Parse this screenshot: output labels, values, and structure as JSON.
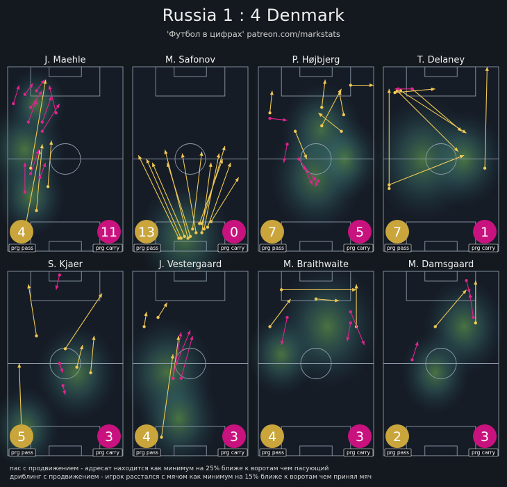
{
  "header": {
    "title": "Russia 1 : 4 Denmark",
    "subtitle": "'Футбол в цифрах' patreon.com/markstats"
  },
  "legend": {
    "prg_pass": "пас с продвижением - адресат находится как минимум на 25% ближе к воротам чем пасующий",
    "prg_carry": "дриблинг с продвижением - игрок расстался с мячом как минимум на 15% ближе к воротам чем принял мяч"
  },
  "colors": {
    "pass": "#f0c955",
    "carry": "#e0248f",
    "pass_badge": "#c9a53c",
    "carry_badge": "#c8127e",
    "pitch_line": "#8a98a8",
    "background": "#14191f"
  },
  "badge_labels": {
    "pass": "prg pass",
    "carry": "prg carry"
  },
  "chart_data": [
    {
      "type": "scatter",
      "player": "J. Maehle",
      "prg_pass": 4,
      "prg_carry": 11,
      "heat": [
        [
          0.15,
          0.45,
          0.35
        ],
        [
          0.2,
          0.7,
          0.3
        ],
        [
          0.25,
          0.2,
          0.25
        ]
      ],
      "passes": [
        [
          0.2,
          0.55,
          0.33,
          0.07
        ],
        [
          0.25,
          0.78,
          0.3,
          0.42
        ],
        [
          0.15,
          0.88,
          0.28,
          0.45
        ],
        [
          0.35,
          0.65,
          0.38,
          0.4
        ]
      ],
      "carries": [
        [
          0.05,
          0.2,
          0.1,
          0.1
        ],
        [
          0.15,
          0.15,
          0.22,
          0.09
        ],
        [
          0.25,
          0.13,
          0.32,
          0.07
        ],
        [
          0.2,
          0.22,
          0.3,
          0.13
        ],
        [
          0.3,
          0.3,
          0.38,
          0.16
        ],
        [
          0.18,
          0.3,
          0.25,
          0.18
        ],
        [
          0.3,
          0.35,
          0.45,
          0.2
        ],
        [
          0.42,
          0.25,
          0.36,
          0.1
        ],
        [
          0.2,
          0.58,
          0.27,
          0.45
        ],
        [
          0.15,
          0.68,
          0.15,
          0.52
        ],
        [
          0.28,
          0.6,
          0.33,
          0.52
        ]
      ]
    },
    {
      "type": "scatter",
      "player": "M. Safonov",
      "prg_pass": 13,
      "prg_carry": 0,
      "heat": [
        [
          0.45,
          0.92,
          0.4
        ]
      ],
      "passes": [
        [
          0.4,
          0.93,
          0.05,
          0.48
        ],
        [
          0.42,
          0.93,
          0.12,
          0.5
        ],
        [
          0.45,
          0.92,
          0.17,
          0.52
        ],
        [
          0.48,
          0.93,
          0.28,
          0.45
        ],
        [
          0.5,
          0.92,
          0.3,
          0.52
        ],
        [
          0.55,
          0.9,
          0.43,
          0.47
        ],
        [
          0.6,
          0.9,
          0.68,
          0.52
        ],
        [
          0.62,
          0.88,
          0.75,
          0.47
        ],
        [
          0.6,
          0.85,
          0.8,
          0.43
        ],
        [
          0.65,
          0.87,
          0.85,
          0.52
        ],
        [
          0.58,
          0.85,
          0.78,
          0.5
        ],
        [
          0.68,
          0.84,
          0.92,
          0.6
        ],
        [
          0.52,
          0.88,
          0.6,
          0.46
        ]
      ],
      "carries": []
    },
    {
      "type": "scatter",
      "player": "P. Højbjerg",
      "prg_pass": 7,
      "prg_carry": 5,
      "heat": [
        [
          0.55,
          0.35,
          0.35
        ],
        [
          0.5,
          0.6,
          0.4
        ],
        [
          0.75,
          0.5,
          0.3
        ]
      ],
      "passes": [
        [
          0.1,
          0.25,
          0.12,
          0.13
        ],
        [
          0.55,
          0.22,
          0.58,
          0.07
        ],
        [
          0.55,
          0.32,
          0.72,
          0.12
        ],
        [
          0.74,
          0.26,
          0.7,
          0.13
        ],
        [
          0.8,
          0.1,
          1.0,
          0.1
        ],
        [
          0.32,
          0.35,
          0.42,
          0.5
        ],
        [
          0.72,
          0.35,
          0.52,
          0.25
        ]
      ],
      "carries": [
        [
          0.1,
          0.28,
          0.25,
          0.29
        ],
        [
          0.25,
          0.42,
          0.22,
          0.52
        ],
        [
          0.35,
          0.5,
          0.5,
          0.62
        ],
        [
          0.4,
          0.55,
          0.47,
          0.64
        ],
        [
          0.52,
          0.62,
          0.49,
          0.65
        ]
      ]
    },
    {
      "type": "scatter",
      "player": "T. Delaney",
      "prg_pass": 7,
      "prg_carry": 1,
      "heat": [
        [
          0.35,
          0.5,
          0.45
        ],
        [
          0.7,
          0.5,
          0.35
        ]
      ],
      "passes": [
        [
          0.05,
          0.66,
          0.05,
          0.12
        ],
        [
          0.1,
          0.14,
          0.45,
          0.12
        ],
        [
          0.12,
          0.13,
          0.65,
          0.46
        ],
        [
          0.15,
          0.13,
          0.72,
          0.36
        ],
        [
          0.25,
          0.12,
          0.68,
          0.35
        ],
        [
          0.05,
          0.64,
          0.7,
          0.48
        ],
        [
          0.88,
          0.55,
          0.9,
          0.0
        ]
      ],
      "carries": [
        [
          0.25,
          0.12,
          0.1,
          0.12
        ]
      ]
    },
    {
      "type": "scatter",
      "player": "S. Kjaer",
      "prg_pass": 5,
      "prg_carry": 3,
      "heat": [
        [
          0.6,
          0.55,
          0.35
        ],
        [
          0.15,
          0.85,
          0.3
        ]
      ],
      "passes": [
        [
          0.25,
          0.35,
          0.18,
          0.07
        ],
        [
          0.5,
          0.42,
          0.82,
          0.12
        ],
        [
          0.12,
          0.85,
          0.1,
          0.5
        ],
        [
          0.72,
          0.55,
          0.75,
          0.35
        ],
        [
          0.6,
          0.52,
          0.65,
          0.4
        ]
      ],
      "carries": [
        [
          0.45,
          0.02,
          0.42,
          0.1
        ],
        [
          0.45,
          0.5,
          0.48,
          0.55
        ],
        [
          0.48,
          0.62,
          0.5,
          0.67
        ]
      ]
    },
    {
      "type": "scatter",
      "player": "J. Vestergaard",
      "prg_pass": 4,
      "prg_carry": 3,
      "heat": [
        [
          0.3,
          0.55,
          0.4
        ],
        [
          0.4,
          0.8,
          0.35
        ]
      ],
      "passes": [
        [
          0.1,
          0.3,
          0.12,
          0.22
        ],
        [
          0.22,
          0.25,
          0.3,
          0.17
        ],
        [
          0.35,
          0.58,
          0.4,
          0.35
        ],
        [
          0.25,
          0.9,
          0.35,
          0.45
        ]
      ],
      "carries": [
        [
          0.35,
          0.58,
          0.42,
          0.33
        ],
        [
          0.38,
          0.5,
          0.5,
          0.32
        ],
        [
          0.42,
          0.58,
          0.52,
          0.35
        ]
      ]
    },
    {
      "type": "scatter",
      "player": "M. Braithwaite",
      "prg_pass": 4,
      "prg_carry": 3,
      "heat": [
        [
          0.6,
          0.3,
          0.45
        ],
        [
          0.2,
          0.45,
          0.3
        ]
      ],
      "passes": [
        [
          0.1,
          0.3,
          0.28,
          0.15
        ],
        [
          0.2,
          0.1,
          0.85,
          0.1
        ],
        [
          0.85,
          0.3,
          0.85,
          0.07
        ],
        [
          0.5,
          0.15,
          0.7,
          0.16
        ]
      ],
      "carries": [
        [
          0.25,
          0.25,
          0.2,
          0.4
        ],
        [
          0.8,
          0.22,
          0.92,
          0.4
        ],
        [
          0.8,
          0.28,
          0.77,
          0.38
        ]
      ]
    },
    {
      "type": "scatter",
      "player": "M. Damsgaard",
      "prg_pass": 2,
      "prg_carry": 3,
      "heat": [
        [
          0.7,
          0.3,
          0.35
        ],
        [
          0.45,
          0.55,
          0.3
        ]
      ],
      "passes": [
        [
          0.45,
          0.3,
          0.72,
          0.1
        ],
        [
          0.8,
          0.28,
          0.8,
          0.05
        ]
      ],
      "carries": [
        [
          0.25,
          0.48,
          0.3,
          0.38
        ],
        [
          0.72,
          0.05,
          0.75,
          0.12
        ],
        [
          0.78,
          0.25,
          0.75,
          0.12
        ]
      ]
    }
  ]
}
